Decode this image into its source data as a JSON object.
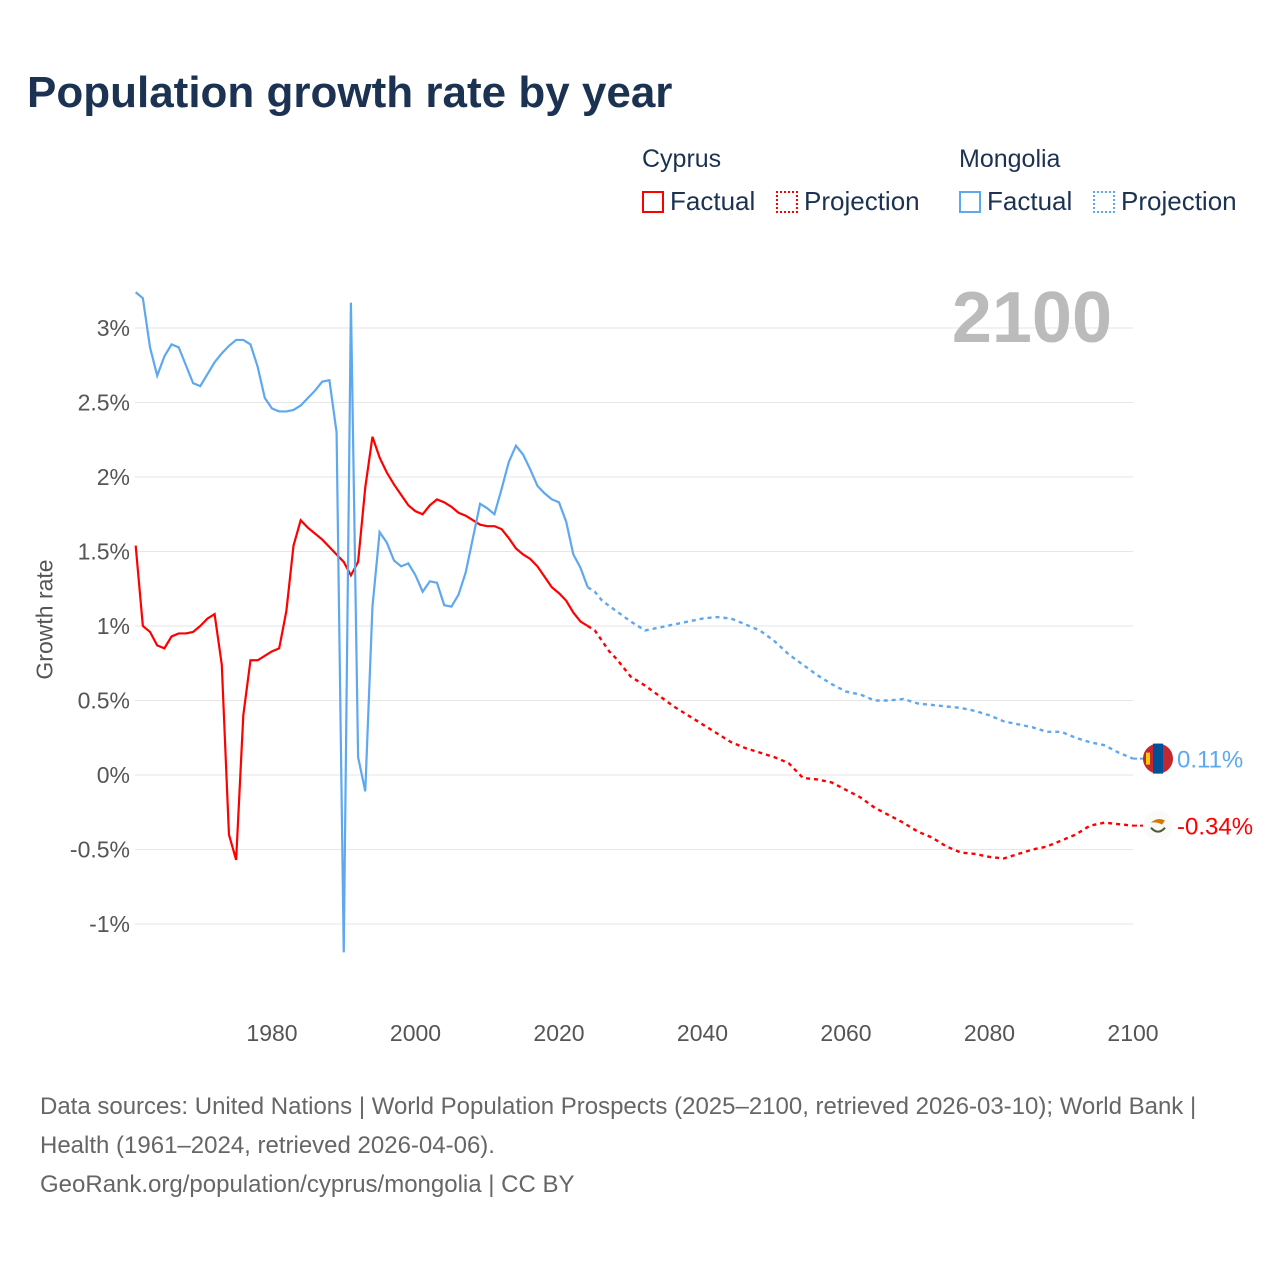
{
  "title": "Population growth rate by year",
  "legend": {
    "groups": [
      {
        "name": "Cyprus",
        "color": "#ff0000",
        "factual": "Factual",
        "projection": "Projection"
      },
      {
        "name": "Mongolia",
        "color": "#5ea8ef",
        "factual": "Factual",
        "projection": "Projection"
      }
    ]
  },
  "footer": {
    "line1": "Data sources: United Nations | World Population Prospects (2025–2100, retrieved 2026-03-10); World Bank | Health (1961–2024, retrieved 2026-04-06).",
    "line2": "GeoRank.org/population/cyprus/mongolia | CC BY"
  },
  "chart_data": {
    "type": "line",
    "title": "Population growth rate by year",
    "xlabel": "",
    "ylabel": "Growth rate",
    "year_label": "2100",
    "xlim": [
      1961,
      2100
    ],
    "ylim": [
      -1.4,
      3.3
    ],
    "xticks": [
      1980,
      2000,
      2020,
      2040,
      2060,
      2080,
      2100
    ],
    "yticks": [
      {
        "v": 3,
        "l": "3%"
      },
      {
        "v": 2.5,
        "l": "2.5%"
      },
      {
        "v": 2,
        "l": "2%"
      },
      {
        "v": 1.5,
        "l": "1.5%"
      },
      {
        "v": 1,
        "l": "1%"
      },
      {
        "v": 0.5,
        "l": "0.5%"
      },
      {
        "v": 0,
        "l": "0%"
      },
      {
        "v": -0.5,
        "l": "-0.5%"
      },
      {
        "v": -1,
        "l": "-1%"
      }
    ],
    "series": [
      {
        "name": "Cyprus",
        "color": "#ff0000",
        "end_label": "-0.34%",
        "flag": "cyprus-flag",
        "factual": {
          "start": 1961,
          "values": [
            1.54,
            1.0,
            0.96,
            0.87,
            0.85,
            0.93,
            0.95,
            0.95,
            0.96,
            1.0,
            1.05,
            1.08,
            0.74,
            -0.4,
            -0.57,
            0.4,
            0.77,
            0.77,
            0.8,
            0.83,
            0.85,
            1.1,
            1.54,
            1.71,
            1.66,
            1.62,
            1.58,
            1.53,
            1.48,
            1.43,
            1.34,
            1.43,
            1.93,
            2.27,
            2.13,
            2.03,
            1.95,
            1.88,
            1.81,
            1.77,
            1.75,
            1.81,
            1.85,
            1.83,
            1.8,
            1.76,
            1.74,
            1.71,
            1.68,
            1.67,
            1.67,
            1.65,
            1.59,
            1.52,
            1.48,
            1.45,
            1.4,
            1.33,
            1.26,
            1.22,
            1.17,
            1.09,
            1.03,
            1.0
          ]
        },
        "projection": {
          "x": [
            2024,
            2025,
            2026,
            2027,
            2028,
            2029,
            2030,
            2032,
            2034,
            2036,
            2038,
            2040,
            2042,
            2044,
            2046,
            2048,
            2050,
            2052,
            2054,
            2056,
            2058,
            2060,
            2062,
            2064,
            2066,
            2068,
            2070,
            2072,
            2074,
            2076,
            2078,
            2080,
            2082,
            2084,
            2086,
            2088,
            2090,
            2092,
            2094,
            2096,
            2098,
            2100
          ],
          "values": [
            1.0,
            0.97,
            0.9,
            0.83,
            0.78,
            0.72,
            0.66,
            0.6,
            0.53,
            0.46,
            0.4,
            0.34,
            0.28,
            0.22,
            0.18,
            0.15,
            0.12,
            0.08,
            -0.02,
            -0.03,
            -0.05,
            -0.1,
            -0.15,
            -0.22,
            -0.27,
            -0.32,
            -0.38,
            -0.42,
            -0.48,
            -0.52,
            -0.53,
            -0.55,
            -0.56,
            -0.53,
            -0.5,
            -0.48,
            -0.44,
            -0.4,
            -0.34,
            -0.32,
            -0.33,
            -0.34
          ]
        }
      },
      {
        "name": "Mongolia",
        "color": "#5ea8ef",
        "end_label": "0.11%",
        "flag": "mongolia-flag",
        "factual": {
          "start": 1961,
          "values": [
            3.24,
            3.2,
            2.87,
            2.68,
            2.81,
            2.89,
            2.87,
            2.75,
            2.63,
            2.61,
            2.69,
            2.77,
            2.83,
            2.88,
            2.92,
            2.92,
            2.89,
            2.74,
            2.53,
            2.46,
            2.44,
            2.44,
            2.45,
            2.48,
            2.53,
            2.58,
            2.64,
            2.65,
            2.3,
            -1.19,
            3.17,
            0.12,
            -0.11,
            1.13,
            1.63,
            1.56,
            1.44,
            1.4,
            1.42,
            1.34,
            1.23,
            1.3,
            1.29,
            1.14,
            1.13,
            1.21,
            1.36,
            1.59,
            1.82,
            1.79,
            1.75,
            1.92,
            2.1,
            2.21,
            2.15,
            2.05,
            1.94,
            1.89,
            1.85,
            1.83,
            1.7,
            1.48,
            1.39,
            1.26
          ]
        },
        "projection": {
          "x": [
            2024,
            2025,
            2026,
            2028,
            2030,
            2032,
            2034,
            2036,
            2038,
            2040,
            2042,
            2044,
            2046,
            2048,
            2050,
            2052,
            2054,
            2056,
            2058,
            2060,
            2062,
            2064,
            2066,
            2068,
            2070,
            2072,
            2074,
            2076,
            2078,
            2080,
            2082,
            2084,
            2086,
            2088,
            2090,
            2092,
            2094,
            2096,
            2098,
            2100
          ],
          "values": [
            1.26,
            1.23,
            1.17,
            1.1,
            1.03,
            0.97,
            0.99,
            1.01,
            1.03,
            1.05,
            1.06,
            1.05,
            1.01,
            0.97,
            0.9,
            0.81,
            0.74,
            0.67,
            0.61,
            0.56,
            0.54,
            0.5,
            0.5,
            0.51,
            0.48,
            0.47,
            0.46,
            0.45,
            0.43,
            0.4,
            0.36,
            0.34,
            0.32,
            0.29,
            0.29,
            0.25,
            0.22,
            0.2,
            0.15,
            0.11
          ]
        }
      }
    ]
  }
}
